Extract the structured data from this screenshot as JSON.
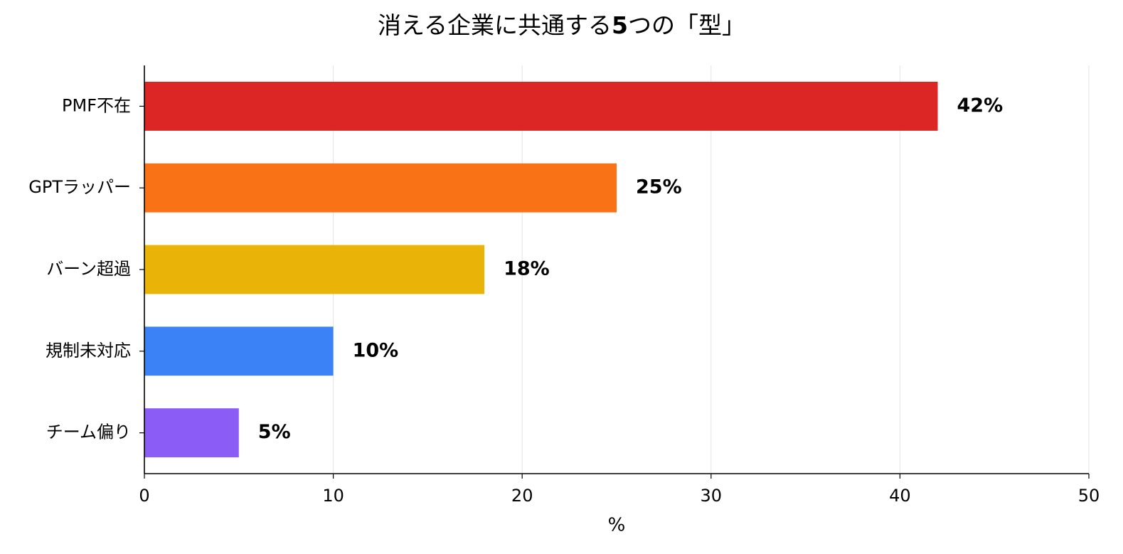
{
  "chart_data": {
    "type": "bar",
    "orientation": "horizontal",
    "title": "消える企業に共通する5つの「型」",
    "xlabel": "%",
    "ylabel": "",
    "xlim": [
      0,
      50
    ],
    "xticks": [
      0,
      10,
      20,
      30,
      40,
      50
    ],
    "grid": "vertical",
    "categories": [
      "PMF不在",
      "GPTラッパー",
      "バーン超過",
      "規制未対応",
      "チーム偏り"
    ],
    "values": [
      42,
      25,
      18,
      10,
      5
    ],
    "data_labels": [
      "42%",
      "25%",
      "18%",
      "10%",
      "5%"
    ],
    "colors": [
      "#dc2626",
      "#f97316",
      "#eab308",
      "#3b82f6",
      "#8b5cf6"
    ]
  }
}
